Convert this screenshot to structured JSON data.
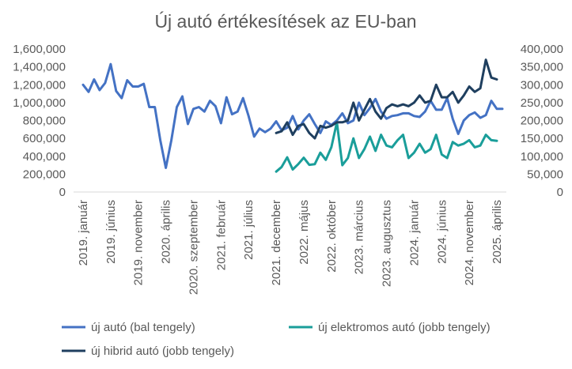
{
  "chart_data": {
    "type": "line",
    "title": "Új autó értékesítések az EU-ban",
    "y_left": {
      "range": [
        0,
        1600000
      ],
      "ticks": [
        0,
        200000,
        400000,
        600000,
        800000,
        1000000,
        1200000,
        1400000,
        1600000
      ],
      "tick_labels": [
        "0",
        "200,000",
        "400,000",
        "600,000",
        "800,000",
        "1,000,000",
        "1,200,000",
        "1,400,000",
        "1,600,000"
      ]
    },
    "y_right": {
      "range": [
        0,
        400000
      ],
      "ticks": [
        0,
        50000,
        100000,
        150000,
        200000,
        250000,
        300000,
        350000,
        400000
      ],
      "tick_labels": [
        "0",
        "50,000",
        "100,000",
        "150,000",
        "200,000",
        "250,000",
        "300,000",
        "350,000",
        "400,000"
      ]
    },
    "x": {
      "start": "2019-01",
      "end": "2025-04",
      "tick_labels": [
        "2019. január",
        "2019. június",
        "2019. november",
        "2020. április",
        "2020. szeptember",
        "2021. február",
        "2021. július",
        "2021. december",
        "2022. május",
        "2022. október",
        "2023. március",
        "2023. augusztus",
        "2024. január",
        "2024. június",
        "2024. november",
        "2025. április"
      ]
    },
    "grid": false,
    "legend_position": "bottom",
    "series": [
      {
        "name": "új autó (bal tengely)",
        "axis": "left",
        "color": "#4472c4",
        "start": "2019-01",
        "values": [
          1200000,
          1120000,
          1260000,
          1140000,
          1220000,
          1430000,
          1130000,
          1050000,
          1250000,
          1180000,
          1180000,
          1210000,
          950000,
          950000,
          580000,
          270000,
          580000,
          950000,
          1070000,
          760000,
          930000,
          950000,
          900000,
          1020000,
          960000,
          770000,
          1060000,
          870000,
          900000,
          1050000,
          850000,
          620000,
          710000,
          670000,
          710000,
          790000,
          690000,
          720000,
          850000,
          700000,
          800000,
          870000,
          760000,
          660000,
          790000,
          750000,
          800000,
          880000,
          770000,
          800000,
          1000000,
          860000,
          940000,
          1040000,
          900000,
          820000,
          850000,
          860000,
          880000,
          880000,
          850000,
          840000,
          900000,
          1020000,
          920000,
          920000,
          1050000,
          820000,
          650000,
          800000,
          860000,
          890000,
          830000,
          860000,
          1020000,
          930000,
          930000
        ]
      },
      {
        "name": "új elektromos autó (jobb tengely)",
        "axis": "right",
        "color": "#1a9e9a",
        "start": "2021-12",
        "values": [
          57000,
          70000,
          97000,
          63000,
          78000,
          96000,
          76000,
          78000,
          110000,
          90000,
          125000,
          195000,
          75000,
          95000,
          150000,
          95000,
          120000,
          155000,
          115000,
          160000,
          130000,
          125000,
          145000,
          160000,
          95000,
          110000,
          135000,
          110000,
          120000,
          160000,
          105000,
          95000,
          140000,
          130000,
          135000,
          145000,
          125000,
          130000,
          160000,
          145000,
          143000
        ]
      },
      {
        "name": "új hibrid autó (jobb tengely)",
        "axis": "right",
        "color": "#1f3f5f",
        "start": "2021-12",
        "values": [
          165000,
          170000,
          195000,
          160000,
          185000,
          190000,
          165000,
          150000,
          185000,
          180000,
          185000,
          195000,
          195000,
          200000,
          250000,
          200000,
          230000,
          260000,
          225000,
          205000,
          235000,
          245000,
          240000,
          245000,
          240000,
          250000,
          270000,
          250000,
          255000,
          300000,
          265000,
          265000,
          280000,
          250000,
          270000,
          295000,
          280000,
          290000,
          370000,
          320000,
          315000
        ]
      }
    ]
  }
}
